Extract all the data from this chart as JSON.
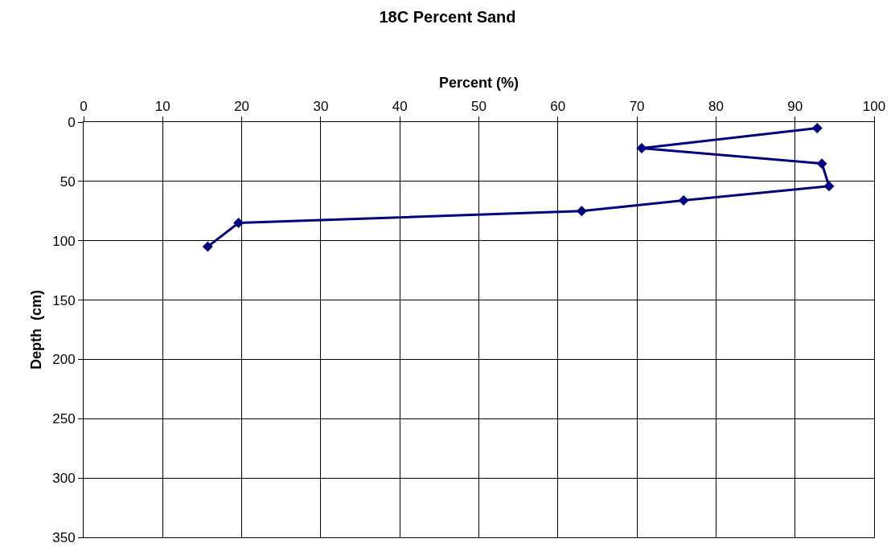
{
  "chart_data": {
    "type": "line",
    "title": "18C Percent Sand",
    "xlabel": "Percent (%)",
    "ylabel": "Depth  (cm)",
    "series": [
      {
        "color": "#000080",
        "x": [
          92.8,
          70.6,
          93.4,
          94.3,
          75.9,
          63.0,
          19.6,
          15.7
        ],
        "values": [
          5,
          22,
          35,
          54,
          66,
          75,
          85,
          105
        ]
      }
    ],
    "xlim": [
      0,
      100
    ],
    "xticks": [
      0,
      10,
      20,
      30,
      40,
      50,
      60,
      70,
      80,
      90,
      100
    ],
    "ylim": [
      350,
      0
    ],
    "yticks": [
      0,
      50,
      100,
      150,
      200,
      250,
      300,
      350
    ],
    "grid": true,
    "marker": "diamond",
    "line_style": "solid"
  }
}
